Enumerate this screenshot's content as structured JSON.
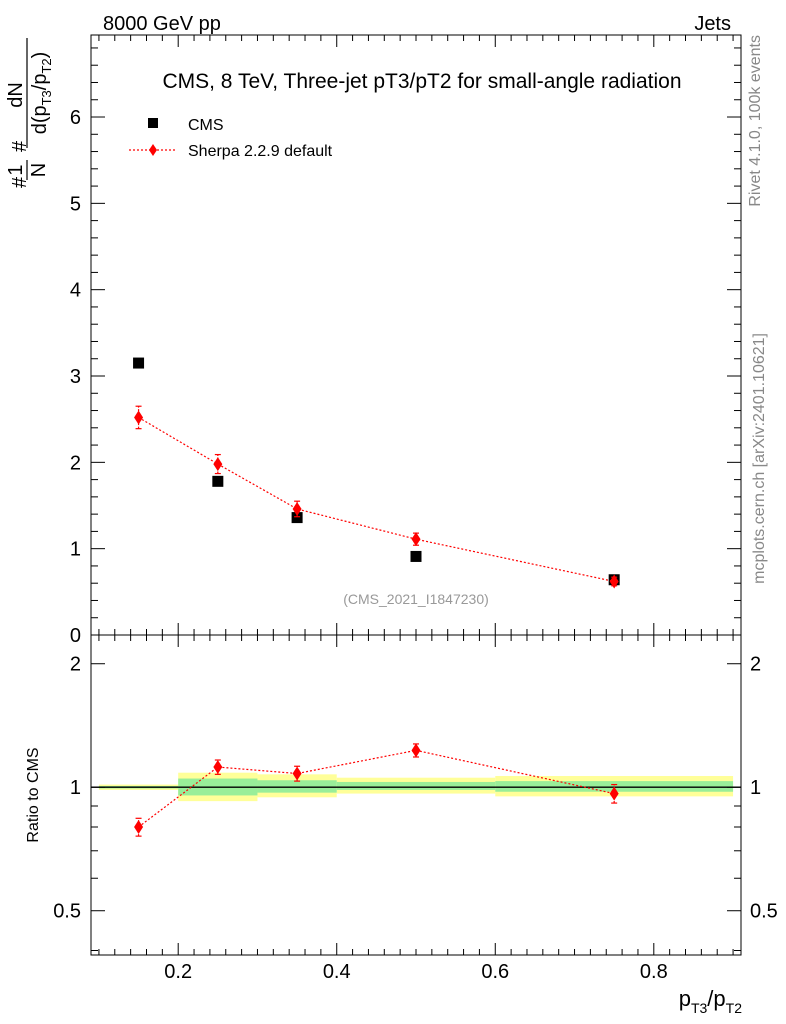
{
  "header": {
    "process": "8000 GeV pp",
    "category": "Jets"
  },
  "side_labels": {
    "rivet": "Rivet 4.1.0,  100k events",
    "mcplots": "mcplots.cern.ch [arXiv:2401.10621]"
  },
  "chart_data": [
    {
      "type": "scatter",
      "panel": "main",
      "title": "CMS, 8 TeV, Three-jet pT3/pT2 for small-angle radiation",
      "watermark": "(CMS_2021_I1847230)",
      "ylabel": "1/N dN/d(pT3/pT2)",
      "xlim": [
        0.09,
        0.91
      ],
      "ylim": [
        0,
        6.95
      ],
      "yticks": [
        0,
        1,
        2,
        3,
        4,
        5,
        6
      ],
      "ytick_labels": [
        "0",
        "1",
        "2",
        "3",
        "4",
        "5",
        "6"
      ],
      "legend_position": "top-left",
      "series": [
        {
          "name": "CMS",
          "color": "#000000",
          "marker": "square",
          "x": [
            0.15,
            0.25,
            0.35,
            0.5,
            0.75
          ],
          "y": [
            3.15,
            1.78,
            1.36,
            0.91,
            0.64
          ]
        },
        {
          "name": "Sherpa 2.2.9 default",
          "color": "#ff0000",
          "marker": "diamond",
          "line": "dotted",
          "x": [
            0.15,
            0.25,
            0.35,
            0.5,
            0.75
          ],
          "y": [
            2.52,
            1.98,
            1.46,
            1.11,
            0.62
          ],
          "yerr": [
            0.13,
            0.11,
            0.09,
            0.07,
            0.05
          ]
        }
      ]
    },
    {
      "type": "scatter",
      "panel": "ratio",
      "ylabel": "Ratio to CMS",
      "xlabel": "pT3/pT2",
      "xlim": [
        0.09,
        0.91
      ],
      "ylim": [
        0.39,
        2.35
      ],
      "yscale": "log",
      "yticks": [
        0.5,
        1,
        2
      ],
      "ytick_labels": [
        "0.5",
        "1",
        "2"
      ],
      "xticks": [
        0.2,
        0.4,
        0.6,
        0.8
      ],
      "xtick_labels": [
        "0.2",
        "0.4",
        "0.6",
        "0.8"
      ],
      "reference_line": 1,
      "uncertainty_bands": [
        {
          "x0": 0.1,
          "x1": 0.2,
          "yellow": [
            0.985,
            1.015
          ],
          "green": [
            0.993,
            1.007
          ]
        },
        {
          "x0": 0.2,
          "x1": 0.3,
          "yellow": [
            0.925,
            1.085
          ],
          "green": [
            0.955,
            1.05
          ]
        },
        {
          "x0": 0.3,
          "x1": 0.4,
          "yellow": [
            0.945,
            1.075
          ],
          "green": [
            0.97,
            1.04
          ]
        },
        {
          "x0": 0.4,
          "x1": 0.6,
          "yellow": [
            0.965,
            1.055
          ],
          "green": [
            0.985,
            1.03
          ]
        },
        {
          "x0": 0.6,
          "x1": 0.9,
          "yellow": [
            0.95,
            1.065
          ],
          "green": [
            0.975,
            1.035
          ]
        }
      ],
      "series": [
        {
          "name": "Sherpa 2.2.9 default",
          "color": "#ff0000",
          "marker": "diamond",
          "line": "dotted",
          "x": [
            0.15,
            0.25,
            0.35,
            0.5,
            0.75
          ],
          "y": [
            0.8,
            1.12,
            1.08,
            1.23,
            0.965
          ],
          "yerr": [
            0.04,
            0.045,
            0.045,
            0.045,
            0.05
          ]
        }
      ]
    }
  ]
}
